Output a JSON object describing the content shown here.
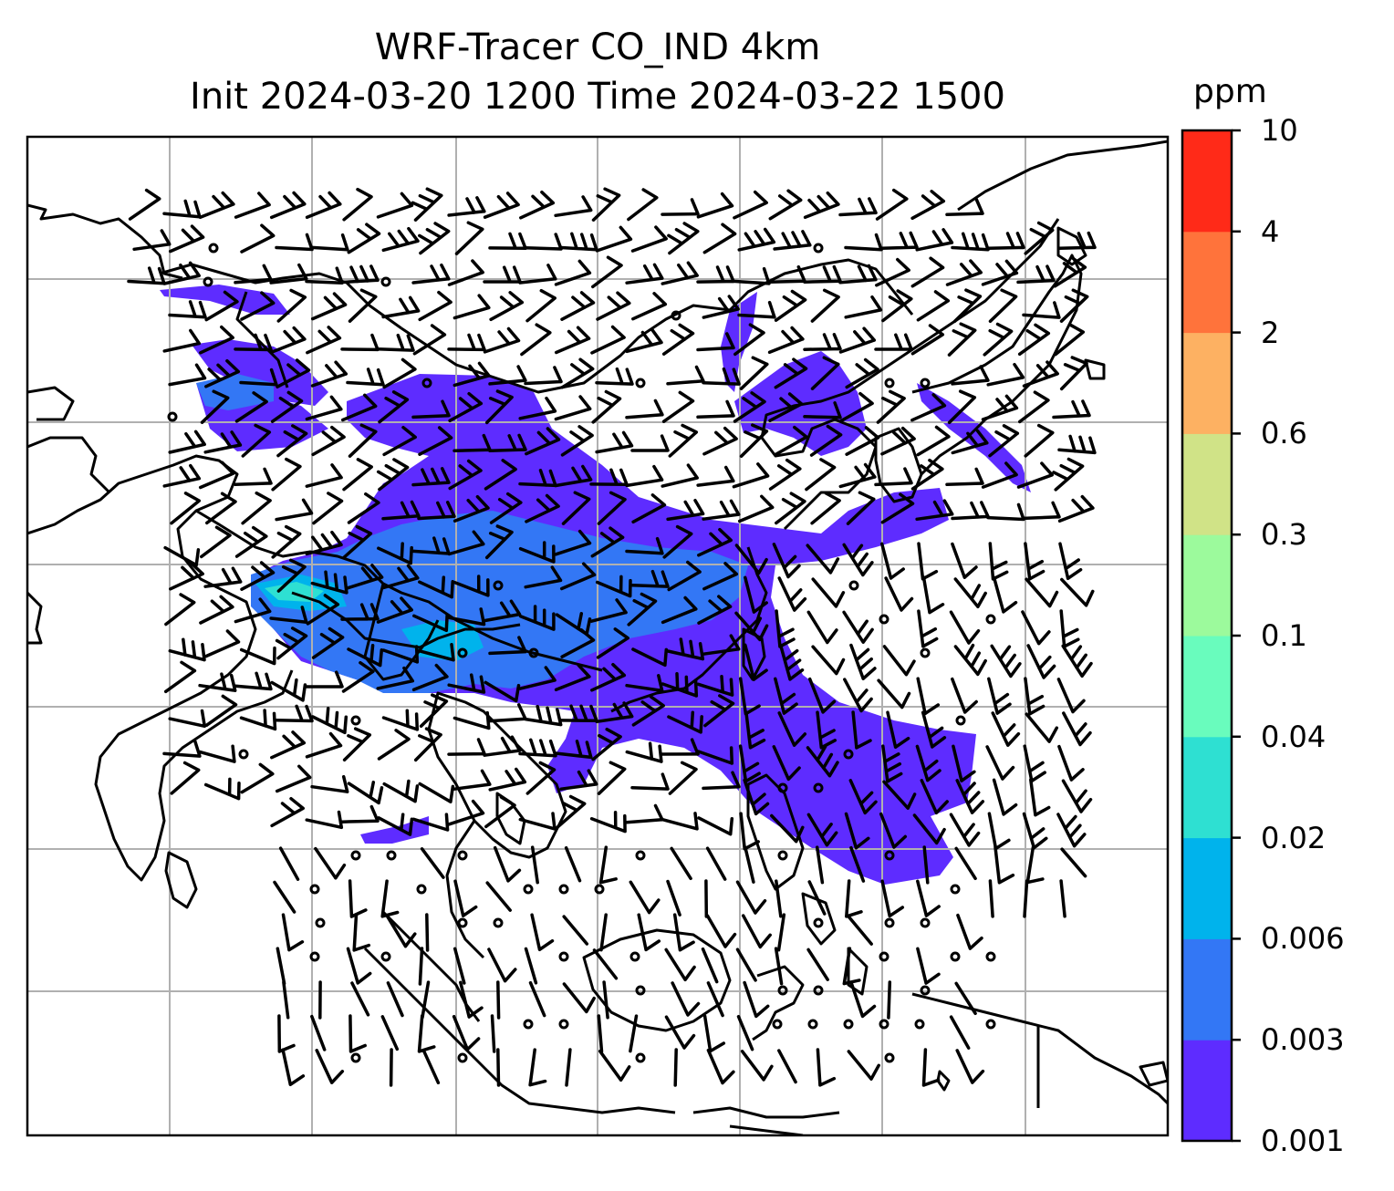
{
  "title": {
    "line1": "WRF-Tracer CO_IND 4km",
    "line2": "Init 2024-03-20 1200 Time 2024-03-22 1500"
  },
  "colorbar": {
    "units": "ppm",
    "levels": [
      "0.001",
      "0.003",
      "0.006",
      "0.02",
      "0.04",
      "0.1",
      "0.3",
      "0.6",
      "2",
      "4",
      "10"
    ],
    "colors": [
      "#5e2cff",
      "#3377f5",
      "#00b3ec",
      "#2ee0d2",
      "#69fcbd",
      "#9cfa9c",
      "#d0e387",
      "#fdb162",
      "#ff733b",
      "#ff2a18"
    ]
  },
  "map": {
    "gridline_color": "#b0b0b0",
    "coastline_color": "#000000",
    "barb_color": "#000000"
  }
}
